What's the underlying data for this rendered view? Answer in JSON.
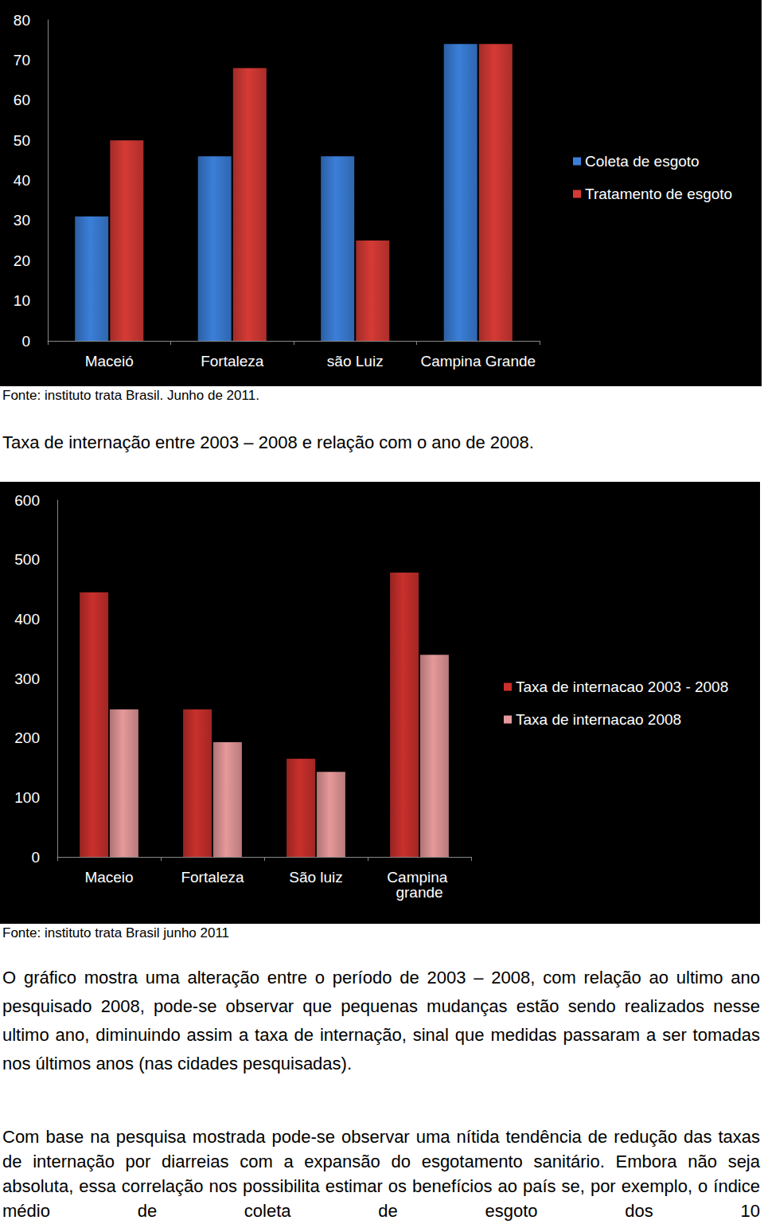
{
  "chart_data": [
    {
      "type": "bar",
      "categories": [
        "Maceió",
        "Fortaleza",
        "são Luiz",
        "Campina Grande"
      ],
      "series": [
        {
          "name": "Coleta de esgoto",
          "color": "#3b7fd9",
          "values": [
            31,
            46,
            46,
            74
          ]
        },
        {
          "name": "Tratamento de esgoto",
          "color": "#d63a35",
          "values": [
            50,
            68,
            25,
            74
          ]
        }
      ],
      "ylim": [
        0,
        80
      ],
      "yticks": [
        0,
        10,
        20,
        30,
        40,
        50,
        60,
        70,
        80
      ],
      "grid": false,
      "legend": "right"
    },
    {
      "type": "bar",
      "categories": [
        "Maceio",
        "Fortaleza",
        "São luiz",
        "Campina grande"
      ],
      "series": [
        {
          "name": "Taxa de internacao 2003 - 2008",
          "color": "#c9302c",
          "values": [
            445,
            248,
            165,
            478
          ]
        },
        {
          "name": "Taxa de internacao 2008",
          "color": "#e6999a",
          "values": [
            248,
            193,
            143,
            340
          ]
        }
      ],
      "ylim": [
        0,
        600
      ],
      "yticks": [
        0,
        100,
        200,
        300,
        400,
        500,
        600
      ],
      "grid": false,
      "legend": "right"
    }
  ],
  "document": {
    "source_1": "Fonte: instituto trata Brasil. Junho de 2011.",
    "caption": "Taxa de internação entre 2003 – 2008 e relação com o ano de 2008.",
    "source_2": "Fonte: instituto trata Brasil junho 2011",
    "paragraphs": [
      "O gráfico mostra uma alteração entre o período de 2003 – 2008, com relação ao ultimo ano pesquisado 2008, pode-se observar que pequenas mudanças estão sendo realizados nesse ultimo ano, diminuindo assim a taxa de internação, sinal que medidas passaram a ser tomadas nos últimos anos (nas cidades pesquisadas).",
      "Com base na pesquisa mostrada pode-se observar uma nítida tendência de redução das taxas de internação por diarreias com a expansão do esgotamento sanitário. Embora não seja absoluta, essa correlação nos possibilita estimar os benefícios ao país se, por exemplo, o índice médio de coleta de esgoto dos 10"
    ]
  }
}
